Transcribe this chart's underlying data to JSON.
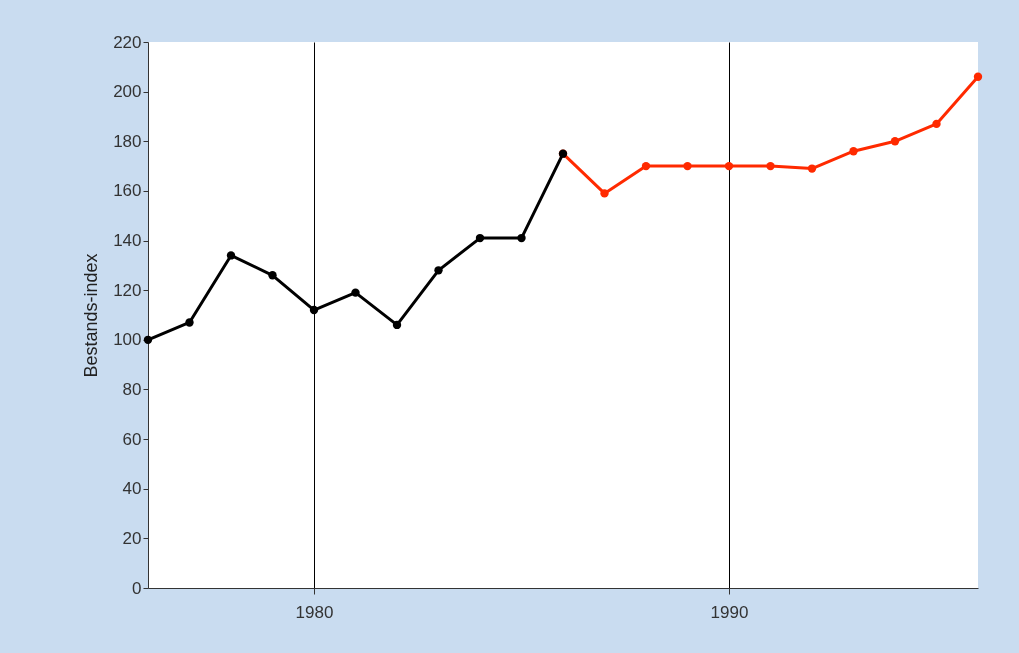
{
  "chart_data": {
    "type": "line",
    "ylabel": "Bestands-index",
    "xlim": [
      1976,
      1996
    ],
    "xticks": [
      1980,
      1990
    ],
    "ylim": [
      0,
      220
    ],
    "yticks": [
      0,
      20,
      40,
      60,
      80,
      100,
      120,
      140,
      160,
      180,
      200,
      220
    ],
    "grid": "x",
    "marker": "circle",
    "line_style": "solid",
    "series": [
      {
        "color": "#ff2a00",
        "x": [
          1986,
          1987,
          1988,
          1989,
          1990,
          1991,
          1992,
          1993,
          1994,
          1995,
          1996
        ],
        "values": [
          175,
          159,
          170,
          170,
          170,
          170,
          169,
          176,
          180,
          187,
          206
        ]
      },
      {
        "color": "#000000",
        "x": [
          1976,
          1977,
          1978,
          1979,
          1980,
          1981,
          1982,
          1983,
          1984,
          1985,
          1986
        ],
        "values": [
          100,
          107,
          134,
          126,
          112,
          119,
          106,
          128,
          141,
          141,
          175
        ]
      }
    ]
  }
}
